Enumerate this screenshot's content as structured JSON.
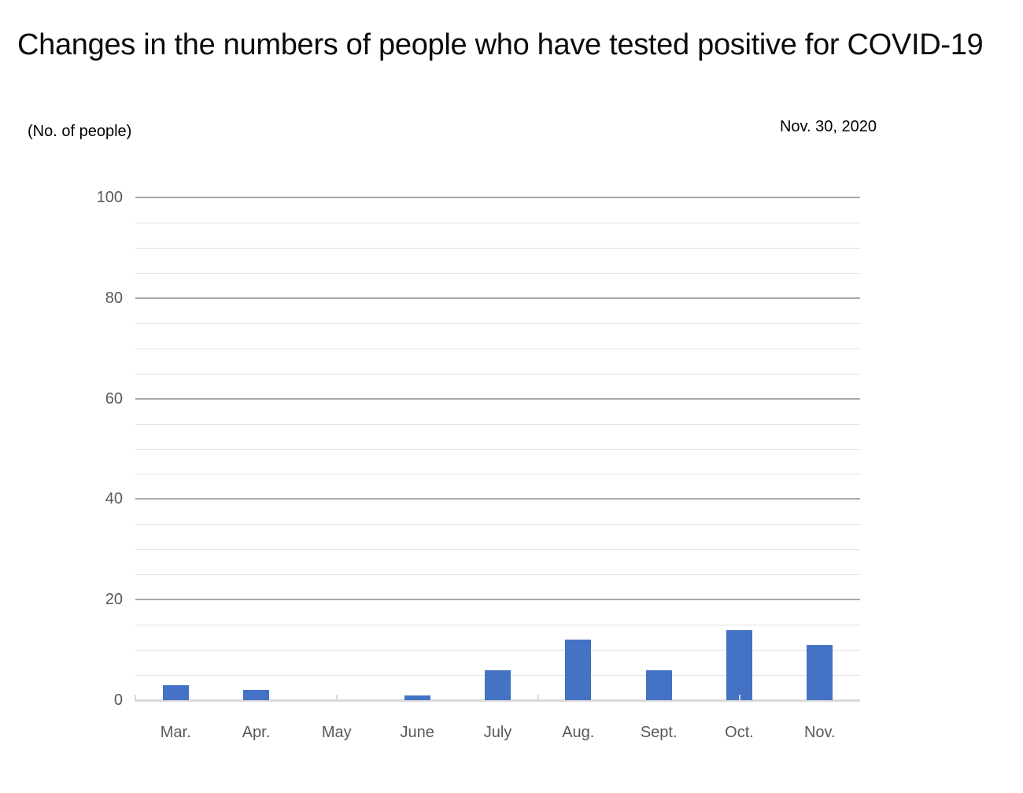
{
  "chart_data": {
    "type": "bar",
    "title": "Changes in the numbers of people who have tested positive for COVID-19",
    "unit_label": "(No. of people)",
    "date_label": "Nov. 30, 2020",
    "categories": [
      "Mar.",
      "Apr.",
      "May",
      "June",
      "July",
      "Aug.",
      "Sept.",
      "Oct.",
      "Nov."
    ],
    "values": [
      3,
      2,
      0,
      1,
      6,
      12,
      6,
      14,
      11
    ],
    "xlabel": "",
    "ylabel": "",
    "ylim": [
      0,
      100
    ],
    "y_major_ticks": [
      100,
      80,
      60,
      40,
      20,
      0
    ],
    "y_minor_step": 5,
    "legend_position": "none",
    "grid": "horizontal major+minor",
    "colors": {
      "bar": "#4472C4",
      "major_gridline": "#a9a9a9",
      "minor_gridline": "#e3e3e3",
      "baseline": "#d9d9d9",
      "axis_tick": "#d9d9d9",
      "axis_label_text": "#595959",
      "title_text": "#0b0b0b"
    }
  }
}
